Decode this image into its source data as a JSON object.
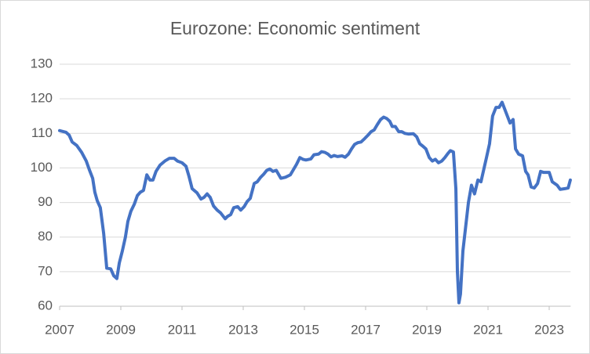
{
  "chart_data": {
    "type": "line",
    "title": "Eurozone: Economic sentiment",
    "color": "#4472c4",
    "grid": true,
    "xlim": [
      2007,
      2023.7
    ],
    "xticks": [
      2007,
      2009,
      2011,
      2013,
      2015,
      2017,
      2019,
      2021,
      2023
    ],
    "ylim": [
      60,
      130
    ],
    "yticks": [
      60,
      70,
      80,
      90,
      100,
      110,
      120,
      130
    ],
    "x": [
      2007.0,
      2007.21,
      2007.31,
      2007.41,
      2007.56,
      2007.72,
      2007.87,
      2007.97,
      2008.08,
      2008.15,
      2008.23,
      2008.33,
      2008.44,
      2008.54,
      2008.67,
      2008.77,
      2008.87,
      2008.95,
      2009.05,
      2009.15,
      2009.23,
      2009.33,
      2009.44,
      2009.54,
      2009.64,
      2009.74,
      2009.85,
      2009.95,
      2010.05,
      2010.15,
      2010.28,
      2010.44,
      2010.59,
      2010.74,
      2010.85,
      2011.0,
      2011.13,
      2011.23,
      2011.33,
      2011.49,
      2011.62,
      2011.72,
      2011.82,
      2011.92,
      2012.03,
      2012.15,
      2012.26,
      2012.41,
      2012.49,
      2012.59,
      2012.69,
      2012.82,
      2012.92,
      2013.03,
      2013.13,
      2013.23,
      2013.36,
      2013.46,
      2013.56,
      2013.67,
      2013.77,
      2013.87,
      2013.97,
      2014.08,
      2014.23,
      2014.38,
      2014.54,
      2014.64,
      2014.74,
      2014.85,
      2014.95,
      2015.05,
      2015.21,
      2015.31,
      2015.46,
      2015.56,
      2015.67,
      2015.77,
      2015.87,
      2015.97,
      2016.08,
      2016.23,
      2016.33,
      2016.44,
      2016.54,
      2016.64,
      2016.74,
      2016.85,
      2016.97,
      2017.08,
      2017.18,
      2017.28,
      2017.38,
      2017.49,
      2017.59,
      2017.69,
      2017.79,
      2017.87,
      2017.97,
      2018.08,
      2018.18,
      2018.28,
      2018.41,
      2018.56,
      2018.67,
      2018.77,
      2018.87,
      2018.97,
      2019.08,
      2019.18,
      2019.28,
      2019.38,
      2019.49,
      2019.59,
      2019.69,
      2019.77,
      2019.87,
      2019.95,
      2020.0,
      2020.05,
      2020.1,
      2020.18,
      2020.36,
      2020.46,
      2020.56,
      2020.67,
      2020.77,
      2020.95,
      2021.05,
      2021.15,
      2021.26,
      2021.36,
      2021.46,
      2021.59,
      2021.72,
      2021.82,
      2021.9,
      2022.0,
      2022.13,
      2022.23,
      2022.31,
      2022.41,
      2022.51,
      2022.62,
      2022.72,
      2022.82,
      2023.0,
      2023.1,
      2023.26,
      2023.36,
      2023.51,
      2023.62,
      2023.69
    ],
    "values": [
      110.8,
      110.3,
      109.5,
      107.5,
      106.5,
      104.5,
      102,
      99.5,
      97,
      93,
      90.5,
      88.5,
      81,
      71,
      70.8,
      68.8,
      68,
      72.5,
      76,
      80,
      84.5,
      87.5,
      89.5,
      92,
      93,
      93.5,
      98,
      96.5,
      96.5,
      99,
      100.8,
      102,
      102.8,
      102.8,
      102,
      101.5,
      100.5,
      97.5,
      94,
      92.8,
      91,
      91.5,
      92.5,
      91.5,
      89,
      87.8,
      87,
      85.3,
      86,
      86.5,
      88.5,
      88.8,
      87.8,
      88.8,
      90.3,
      91.2,
      95.5,
      96,
      97.2,
      98.2,
      99.3,
      99.7,
      99,
      99.3,
      97,
      97.3,
      98,
      99.5,
      101,
      103,
      102.5,
      102.3,
      102.6,
      103.8,
      104,
      104.7,
      104.5,
      104,
      103.2,
      103.6,
      103.3,
      103.5,
      103.1,
      104,
      105.5,
      106.8,
      107.3,
      107.5,
      108.5,
      109.5,
      110.5,
      111,
      112.5,
      114,
      114.7,
      114.3,
      113.5,
      112,
      112,
      110.5,
      110.5,
      110,
      109.8,
      109.9,
      109,
      107,
      106.3,
      105.5,
      103,
      102,
      102.5,
      101.5,
      102,
      103,
      104.2,
      105,
      104.6,
      94,
      70,
      61,
      63.5,
      76,
      90,
      95,
      92.5,
      96.5,
      96,
      103,
      107,
      115,
      117.5,
      117.5,
      119,
      116,
      113,
      114,
      105.5,
      104,
      103.5,
      99,
      98,
      94.5,
      94.2,
      95.5,
      99,
      98.7,
      98.7,
      96,
      95,
      93.8,
      94,
      94.2,
      96.5
    ]
  }
}
